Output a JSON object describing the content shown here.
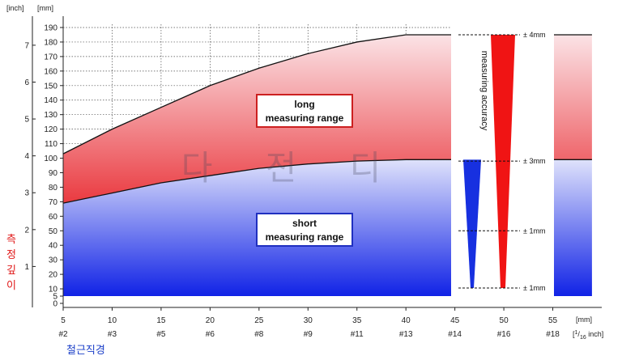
{
  "chart_data": {
    "type": "area",
    "units": {
      "inch_axis_label": "[inch]",
      "mm_axis_label": "[mm]",
      "x_mm_unit": "[mm]",
      "x_inch_unit_prefix": "[",
      "x_inch_unit_num": "1",
      "x_inch_unit_den": "16",
      "x_inch_unit_suffix": " inch]"
    },
    "y_mm_ticks": [
      "0",
      "5",
      "10",
      "20",
      "30",
      "40",
      "50",
      "60",
      "70",
      "80",
      "90",
      "100",
      "110",
      "120",
      "130",
      "140",
      "150",
      "160",
      "170",
      "180",
      "190"
    ],
    "y_inch_ticks": [
      "1",
      "2",
      "3",
      "4",
      "5",
      "6",
      "7"
    ],
    "x_mm_ticks": [
      "5",
      "10",
      "15",
      "20",
      "25",
      "30",
      "35",
      "40",
      "45",
      "50",
      "55"
    ],
    "x_rebar_ticks": [
      "#2",
      "#3",
      "#5",
      "#6",
      "#8",
      "#9",
      "#11",
      "#13",
      "#14",
      "#16",
      "#18"
    ],
    "ylim": [
      0,
      190
    ],
    "xlim": [
      5,
      59
    ],
    "series": [
      {
        "name": "long measuring range",
        "name_lines": [
          "long",
          "measuring range"
        ],
        "color": "#e23b3b",
        "x": [
          5,
          10,
          15,
          20,
          25,
          30,
          35,
          40,
          45,
          59
        ],
        "y": [
          103,
          120,
          135,
          150,
          162,
          172,
          180,
          185,
          185,
          185
        ]
      },
      {
        "name": "short measuring range",
        "name_lines": [
          "short",
          "measuring range"
        ],
        "color": "#2a3fe0",
        "x": [
          5,
          10,
          15,
          20,
          25,
          30,
          35,
          40,
          45,
          59
        ],
        "y": [
          69,
          76,
          83,
          88,
          93,
          96,
          98,
          99,
          99,
          99
        ]
      }
    ],
    "accuracy": {
      "label": "measuring accuracy",
      "levels": [
        {
          "text": "± 4mm",
          "y": 185
        },
        {
          "text": "± 3mm",
          "y": 98
        },
        {
          "text": "± 1mm",
          "y": 50
        },
        {
          "text": "± 1mm",
          "y": 5
        }
      ]
    },
    "watermark": "다 전 디",
    "korean_y_label": "측정깊이",
    "korean_x_label": "철근직경",
    "colors": {
      "long_light": "#fbe3e6",
      "long_dark": "#ea3a40",
      "short_light": "#dfe2fb",
      "short_dark": "#1022e6",
      "wedge_red": "#f01414",
      "wedge_blue": "#1730e0",
      "korean_y": "#e01818",
      "korean_x": "#1a3ec8"
    }
  }
}
